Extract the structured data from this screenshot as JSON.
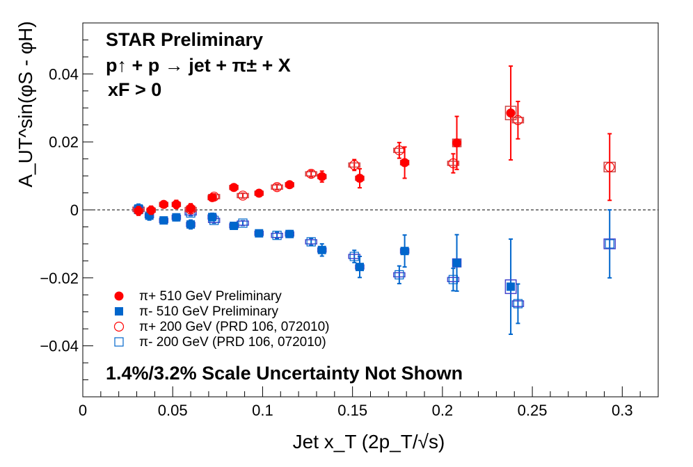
{
  "chart_data": {
    "type": "scatter",
    "title": "",
    "xlabel": "Jet x_T (2p_T/√s)",
    "ylabel": "A_UT^sin(φS - φH)",
    "xlim": [
      0,
      0.32
    ],
    "ylim": [
      -0.055,
      0.055
    ],
    "xticks": [
      0,
      0.05,
      0.1,
      0.15,
      0.2,
      0.25,
      0.3
    ],
    "xtick_labels": [
      "0",
      "0.05",
      "0.1",
      "0.15",
      "0.2",
      "0.25",
      "0.3"
    ],
    "yticks": [
      -0.04,
      -0.02,
      0,
      0.02,
      0.04
    ],
    "ytick_labels": [
      "−0.04",
      "−0.02",
      "0",
      "0.02",
      "0.04"
    ],
    "zero_line": "dashed",
    "annotations": {
      "line1": "STAR Preliminary",
      "line2": "p↑ + p → jet + π± + X",
      "line3": "xF > 0",
      "scale_note": "1.4%/3.2% Scale Uncertainty Not Shown"
    },
    "legend_position": "bottom-left",
    "series": [
      {
        "name": "π+ 510 GeV Preliminary",
        "color": "#ff0000",
        "marker": "filled-circle",
        "points": [
          {
            "x": 0.031,
            "y": -0.0003,
            "err": 0.0013
          },
          {
            "x": 0.038,
            "y": -0.0001,
            "err": 0.0012
          },
          {
            "x": 0.045,
            "y": 0.0016,
            "err": 0.0008
          },
          {
            "x": 0.052,
            "y": 0.0016,
            "err": 0.0012
          },
          {
            "x": 0.06,
            "y": 0.0005,
            "err": 0.0013
          },
          {
            "x": 0.072,
            "y": 0.0036,
            "err": 0.0008
          },
          {
            "x": 0.084,
            "y": 0.0066,
            "err": 0.0007
          },
          {
            "x": 0.098,
            "y": 0.0049,
            "err": 0.0006
          },
          {
            "x": 0.115,
            "y": 0.0074,
            "err": 0.0009
          },
          {
            "x": 0.133,
            "y": 0.0098,
            "err": 0.0016
          },
          {
            "x": 0.154,
            "y": 0.0093,
            "err": 0.0028
          },
          {
            "x": 0.179,
            "y": 0.0139,
            "err": 0.0046
          },
          {
            "x": 0.208,
            "y": 0.0197,
            "err": 0.0078
          },
          {
            "x": 0.238,
            "y": 0.0285,
            "err": 0.0138
          }
        ]
      },
      {
        "name": "π- 510 GeV Preliminary",
        "color": "#0066cc",
        "marker": "filled-square",
        "points": [
          {
            "x": 0.031,
            "y": 0.0004,
            "err": 0.0013
          },
          {
            "x": 0.037,
            "y": -0.0017,
            "err": 0.0013
          },
          {
            "x": 0.045,
            "y": -0.0031,
            "err": 0.0008
          },
          {
            "x": 0.052,
            "y": -0.0022,
            "err": 0.001
          },
          {
            "x": 0.06,
            "y": -0.0043,
            "err": 0.0013
          },
          {
            "x": 0.072,
            "y": -0.0021,
            "err": 0.0011
          },
          {
            "x": 0.084,
            "y": -0.0047,
            "err": 0.0008
          },
          {
            "x": 0.098,
            "y": -0.0069,
            "err": 0.0006
          },
          {
            "x": 0.115,
            "y": -0.0071,
            "err": 0.001
          },
          {
            "x": 0.133,
            "y": -0.0118,
            "err": 0.0018
          },
          {
            "x": 0.154,
            "y": -0.0168,
            "err": 0.0031
          },
          {
            "x": 0.179,
            "y": -0.0121,
            "err": 0.0047
          },
          {
            "x": 0.208,
            "y": -0.0156,
            "err": 0.0083
          },
          {
            "x": 0.238,
            "y": -0.0226,
            "err": 0.014
          }
        ]
      },
      {
        "name": "π+ 200 GeV (PRD 106, 072010)",
        "color": "#ff0000",
        "marker": "open-circle",
        "points": [
          {
            "x": 0.031,
            "y": 0.0002,
            "err": 0.0008
          },
          {
            "x": 0.06,
            "y": 0.0001,
            "err": 0.0008
          },
          {
            "x": 0.073,
            "y": 0.0039,
            "err": 0.0008
          },
          {
            "x": 0.089,
            "y": 0.0042,
            "err": 0.0007
          },
          {
            "x": 0.108,
            "y": 0.0067,
            "err": 0.0008
          },
          {
            "x": 0.127,
            "y": 0.0106,
            "err": 0.0009
          },
          {
            "x": 0.151,
            "y": 0.0132,
            "err": 0.0016
          },
          {
            "x": 0.176,
            "y": 0.0175,
            "err": 0.0023
          },
          {
            "x": 0.206,
            "y": 0.0137,
            "err": 0.0028
          },
          {
            "x": 0.242,
            "y": 0.0264,
            "err": 0.0055
          },
          {
            "x": 0.293,
            "y": 0.0126,
            "err": 0.0098
          }
        ]
      },
      {
        "name": "π- 200 GeV (PRD 106, 072010)",
        "color": "#0066cc",
        "marker": "open-square",
        "points": [
          {
            "x": 0.031,
            "y": 0.0001,
            "err": 0.0008
          },
          {
            "x": 0.06,
            "y": -0.0009,
            "err": 0.0008
          },
          {
            "x": 0.073,
            "y": -0.0031,
            "err": 0.0008
          },
          {
            "x": 0.089,
            "y": -0.0039,
            "err": 0.0007
          },
          {
            "x": 0.108,
            "y": -0.0075,
            "err": 0.0009
          },
          {
            "x": 0.127,
            "y": -0.0094,
            "err": 0.001
          },
          {
            "x": 0.151,
            "y": -0.0137,
            "err": 0.0018
          },
          {
            "x": 0.176,
            "y": -0.0191,
            "err": 0.0026
          },
          {
            "x": 0.206,
            "y": -0.0205,
            "err": 0.0033
          },
          {
            "x": 0.242,
            "y": -0.0276,
            "err": 0.0058
          },
          {
            "x": 0.293,
            "y": -0.01,
            "err": 0.01
          }
        ]
      }
    ]
  }
}
